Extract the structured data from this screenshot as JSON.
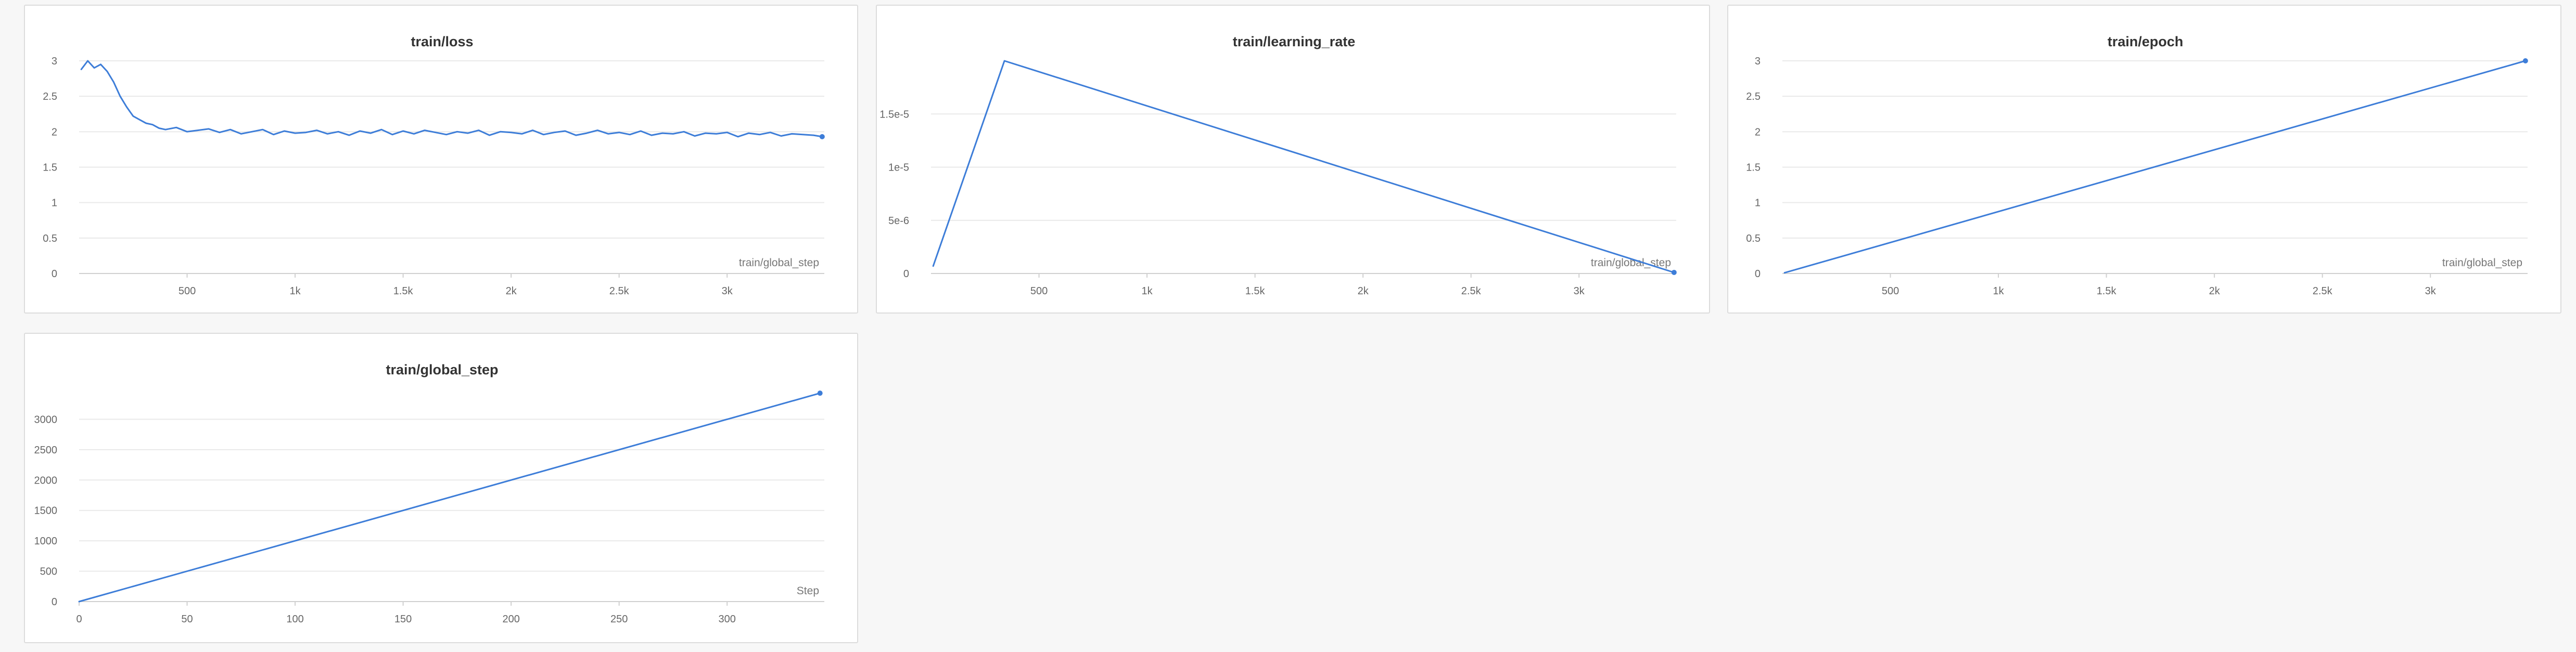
{
  "accent_color": "#3d7dd8",
  "chart_data": [
    {
      "type": "line",
      "title": "train/loss",
      "xlabel": "train/global_step",
      "ylabel": "",
      "xlim": [
        0,
        3450
      ],
      "ylim": [
        0,
        3
      ],
      "xticks": [
        500,
        1000,
        1500,
        2000,
        2500,
        3000
      ],
      "xtick_labels": [
        "500",
        "1k",
        "1.5k",
        "2k",
        "2.5k",
        "3k"
      ],
      "yticks": [
        0,
        0.5,
        1,
        1.5,
        2,
        2.5,
        3
      ],
      "ytick_labels": [
        "0",
        "0.5",
        "1",
        "1.5",
        "2",
        "2.5",
        "3"
      ],
      "grid": true,
      "end_marker": true,
      "series": [
        {
          "x": [
            10,
            40,
            70,
            100,
            130,
            160,
            190,
            220,
            250,
            280,
            310,
            340,
            370,
            400,
            450,
            500,
            550,
            600,
            650,
            700,
            750,
            800,
            850,
            900,
            950,
            1000,
            1050,
            1100,
            1150,
            1200,
            1250,
            1300,
            1350,
            1400,
            1450,
            1500,
            1550,
            1600,
            1650,
            1700,
            1750,
            1800,
            1850,
            1900,
            1950,
            2000,
            2050,
            2100,
            2150,
            2200,
            2250,
            2300,
            2350,
            2400,
            2450,
            2500,
            2550,
            2600,
            2650,
            2700,
            2750,
            2800,
            2850,
            2900,
            2950,
            3000,
            3050,
            3100,
            3150,
            3200,
            3250,
            3300,
            3350,
            3400,
            3440
          ],
          "y": [
            2.88,
            3.0,
            2.9,
            2.95,
            2.85,
            2.7,
            2.5,
            2.35,
            2.22,
            2.17,
            2.12,
            2.1,
            2.05,
            2.03,
            2.06,
            2.0,
            2.02,
            2.04,
            1.99,
            2.03,
            1.97,
            2.0,
            2.03,
            1.96,
            2.01,
            1.98,
            1.99,
            2.02,
            1.97,
            2.0,
            1.95,
            2.01,
            1.98,
            2.03,
            1.96,
            2.01,
            1.97,
            2.02,
            1.99,
            1.96,
            2.0,
            1.98,
            2.02,
            1.95,
            2.0,
            1.99,
            1.97,
            2.02,
            1.96,
            1.99,
            2.01,
            1.95,
            1.98,
            2.02,
            1.97,
            1.99,
            1.96,
            2.01,
            1.95,
            1.98,
            1.97,
            2.0,
            1.94,
            1.98,
            1.97,
            1.99,
            1.93,
            1.98,
            1.96,
            1.99,
            1.94,
            1.97,
            1.96,
            1.95,
            1.93
          ]
        }
      ]
    },
    {
      "type": "line",
      "title": "train/learning_rate",
      "xlabel": "train/global_step",
      "ylabel": "",
      "xlim": [
        0,
        3450
      ],
      "ylim": [
        0,
        2e-05
      ],
      "xticks": [
        500,
        1000,
        1500,
        2000,
        2500,
        3000
      ],
      "xtick_labels": [
        "500",
        "1k",
        "1.5k",
        "2k",
        "2.5k",
        "3k"
      ],
      "yticks": [
        0,
        5e-06,
        1e-05,
        1.5e-05
      ],
      "ytick_labels": [
        "0",
        "5e-6",
        "1e-5",
        "1.5e-5"
      ],
      "grid": true,
      "end_marker": true,
      "series": [
        {
          "x": [
            10,
            340,
            3440
          ],
          "y": [
            7e-07,
            2e-05,
            1e-07
          ]
        }
      ]
    },
    {
      "type": "line",
      "title": "train/epoch",
      "xlabel": "train/global_step",
      "ylabel": "",
      "xlim": [
        0,
        3450
      ],
      "ylim": [
        0,
        3
      ],
      "xticks": [
        500,
        1000,
        1500,
        2000,
        2500,
        3000
      ],
      "xtick_labels": [
        "500",
        "1k",
        "1.5k",
        "2k",
        "2.5k",
        "3k"
      ],
      "yticks": [
        0,
        0.5,
        1,
        1.5,
        2,
        2.5,
        3
      ],
      "ytick_labels": [
        "0",
        "0.5",
        "1",
        "1.5",
        "2",
        "2.5",
        "3"
      ],
      "grid": true,
      "end_marker": true,
      "series": [
        {
          "x": [
            10,
            3440
          ],
          "y": [
            0.01,
            3.0
          ]
        }
      ]
    },
    {
      "type": "line",
      "title": "train/global_step",
      "xlabel": "Step",
      "ylabel": "",
      "xlim": [
        0,
        345
      ],
      "ylim": [
        0,
        3500
      ],
      "xticks": [
        0,
        50,
        100,
        150,
        200,
        250,
        300
      ],
      "xtick_labels": [
        "0",
        "50",
        "100",
        "150",
        "200",
        "250",
        "300"
      ],
      "yticks": [
        0,
        500,
        1000,
        1500,
        2000,
        2500,
        3000
      ],
      "ytick_labels": [
        "0",
        "500",
        "1000",
        "1500",
        "2000",
        "2500",
        "3000"
      ],
      "grid": true,
      "end_marker": true,
      "series": [
        {
          "x": [
            0,
            343
          ],
          "y": [
            0,
            3430
          ]
        }
      ]
    }
  ]
}
